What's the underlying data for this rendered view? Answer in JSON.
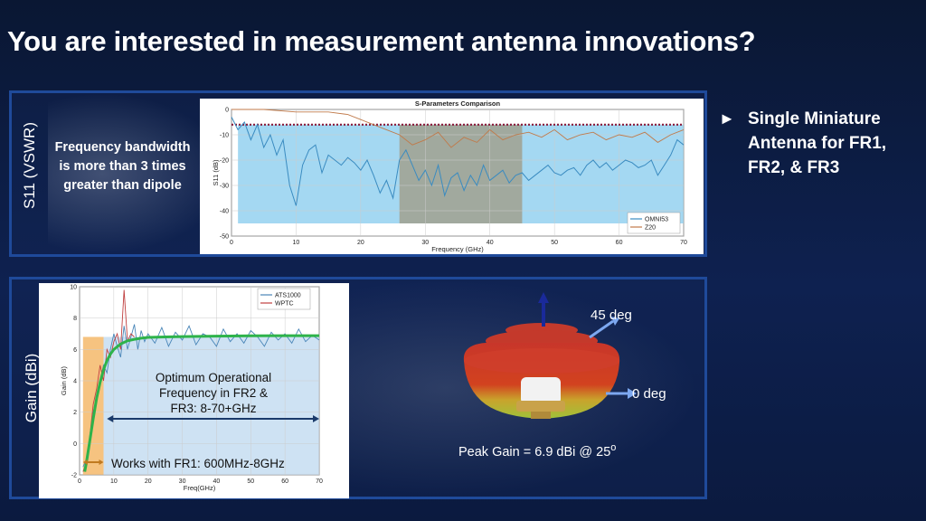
{
  "slide": {
    "title": "You are interested in measurement antenna innovations?",
    "bullet": "Single Miniature Antenna for FR1, FR2, & FR3",
    "bullet_marker": "►"
  },
  "s11_panel": {
    "side_label": "S11 (VSWR)",
    "note": "Frequency bandwidth is more than 3 times greater than dipole"
  },
  "gain_panel": {
    "side_label": "Gain (dBi)",
    "optimum_text": "Optimum Operational Frequency in FR2 & FR3: 8-70+GHz",
    "fr1_text": "Works with FR1: 600MHz-8GHz",
    "deg45": "45 deg",
    "deg0": "0 deg",
    "peak_gain": "Peak Gain = 6.9 dBi @ 25",
    "peak_gain_sup": "o"
  },
  "chart_data": [
    {
      "type": "line",
      "title": "S-Parameters Comparison",
      "xlabel": "Frequency (GHz)",
      "ylabel": "S11 (dB)",
      "xlim": [
        0,
        70
      ],
      "ylim": [
        -50,
        0
      ],
      "xticks": [
        "0",
        "10",
        "20",
        "30",
        "40",
        "50",
        "60",
        "70"
      ],
      "yticks": [
        "0",
        "-10",
        "-20",
        "-30",
        "-40",
        "-50"
      ],
      "grid": true,
      "legend": "bottom-right",
      "threshold": -6,
      "highlight_bands": [
        {
          "x0": 1,
          "x1": 70,
          "y0": -45,
          "y1": -6,
          "color": "#7ec8ec"
        },
        {
          "x0": 26,
          "x1": 45,
          "y0": -45,
          "y1": -6,
          "color": "#a0957a"
        }
      ],
      "series": [
        {
          "name": "OMNI53",
          "color": "#3a8bc0",
          "x": [
            0,
            1,
            2,
            3,
            4,
            5,
            6,
            7,
            8,
            9,
            10,
            11,
            12,
            13,
            14,
            15,
            16,
            17,
            18,
            19,
            20,
            21,
            22,
            23,
            24,
            25,
            26,
            27,
            28,
            29,
            30,
            31,
            32,
            33,
            34,
            35,
            36,
            37,
            38,
            39,
            40,
            41,
            42,
            43,
            44,
            45,
            46,
            47,
            48,
            49,
            50,
            51,
            52,
            53,
            54,
            55,
            56,
            57,
            58,
            59,
            60,
            61,
            62,
            63,
            64,
            65,
            66,
            67,
            68,
            69,
            70
          ],
          "values": [
            -3,
            -8,
            -5,
            -12,
            -6,
            -15,
            -10,
            -18,
            -12,
            -30,
            -38,
            -22,
            -16,
            -14,
            -25,
            -18,
            -20,
            -22,
            -19,
            -21,
            -24,
            -20,
            -26,
            -33,
            -28,
            -35,
            -20,
            -16,
            -22,
            -28,
            -24,
            -30,
            -22,
            -34,
            -27,
            -25,
            -32,
            -26,
            -30,
            -22,
            -28,
            -26,
            -24,
            -29,
            -26,
            -25,
            -28,
            -26,
            -24,
            -22,
            -25,
            -26,
            -24,
            -23,
            -26,
            -22,
            -20,
            -23,
            -21,
            -24,
            -22,
            -20,
            -21,
            -23,
            -22,
            -20,
            -26,
            -22,
            -18,
            -12,
            -14
          ]
        },
        {
          "name": "Z20",
          "color": "#c07a4a",
          "x": [
            0,
            5,
            10,
            15,
            18,
            20,
            22,
            24,
            26,
            28,
            30,
            32,
            34,
            36,
            38,
            40,
            42,
            44,
            46,
            48,
            50,
            52,
            54,
            56,
            58,
            60,
            62,
            64,
            66,
            68,
            70
          ],
          "values": [
            0,
            0,
            -1,
            -1,
            -2,
            -4,
            -6,
            -8,
            -10,
            -14,
            -12,
            -9,
            -15,
            -11,
            -13,
            -8,
            -12,
            -10,
            -9,
            -11,
            -8,
            -12,
            -10,
            -9,
            -12,
            -10,
            -11,
            -9,
            -13,
            -10,
            -8
          ]
        }
      ]
    },
    {
      "type": "line",
      "title": "",
      "xlabel": "Freq(GHz)",
      "ylabel": "Gain (dB)",
      "xlim": [
        0,
        70
      ],
      "ylim": [
        -2,
        10
      ],
      "xticks": [
        "0",
        "10",
        "20",
        "30",
        "40",
        "50",
        "60",
        "70"
      ],
      "yticks": [
        "-2",
        "0",
        "2",
        "4",
        "6",
        "8",
        "10"
      ],
      "grid": true,
      "legend": "top-right",
      "highlight_bands": [
        {
          "x0": 1,
          "x1": 7,
          "y0": -2,
          "y1": 6.8,
          "color": "#f2a94a"
        },
        {
          "x0": 7,
          "x1": 70,
          "y0": -2,
          "y1": 6.8,
          "color": "#b9d6ee"
        }
      ],
      "series": [
        {
          "name": "ATS1000",
          "color": "#4a86b8",
          "x": [
            1,
            2,
            3,
            4,
            5,
            6,
            7,
            8,
            9,
            10,
            11,
            12,
            13,
            14,
            15,
            16,
            17,
            18,
            19,
            20,
            22,
            24,
            26,
            28,
            30,
            32,
            34,
            36,
            38,
            40,
            42,
            44,
            46,
            48,
            50,
            52,
            54,
            56,
            58,
            60,
            62,
            64,
            66,
            68,
            70
          ],
          "values": [
            -1.5,
            -1,
            0,
            2,
            3,
            4,
            5,
            4.5,
            6,
            7,
            6.2,
            5.5,
            7.5,
            6,
            6.8,
            7.6,
            6,
            7.2,
            6.5,
            7,
            6.4,
            7.4,
            6.2,
            7.1,
            6.6,
            7.5,
            6.3,
            7,
            6.8,
            6.2,
            7.3,
            6.5,
            7,
            6.4,
            7.2,
            6.8,
            6.2,
            7.1,
            6.6,
            7,
            6.4,
            7.3,
            6.5,
            6.9,
            6.6
          ]
        },
        {
          "name": "WPTC",
          "color": "#c04040",
          "x": [
            1,
            2,
            3,
            4,
            5,
            6,
            7,
            8,
            9,
            10,
            11,
            12,
            13,
            14,
            15,
            16
          ],
          "values": [
            -1.8,
            -1.2,
            0.5,
            2.5,
            3.5,
            5,
            4,
            6,
            5.5,
            6.5,
            7,
            6,
            9.8,
            6.5,
            7,
            6.8
          ]
        },
        {
          "name": "",
          "color": "#2eb34a",
          "x": [
            1.5,
            2,
            3,
            4,
            5,
            6,
            7,
            8,
            9,
            10,
            12,
            14,
            16,
            18,
            20,
            25,
            30,
            40,
            50,
            60,
            70
          ],
          "values": [
            -1.8,
            -1.2,
            0.2,
            1.6,
            2.9,
            3.9,
            4.7,
            5.3,
            5.7,
            6,
            6.35,
            6.55,
            6.65,
            6.72,
            6.77,
            6.8,
            6.82,
            6.85,
            6.87,
            6.88,
            6.88
          ]
        }
      ]
    }
  ]
}
